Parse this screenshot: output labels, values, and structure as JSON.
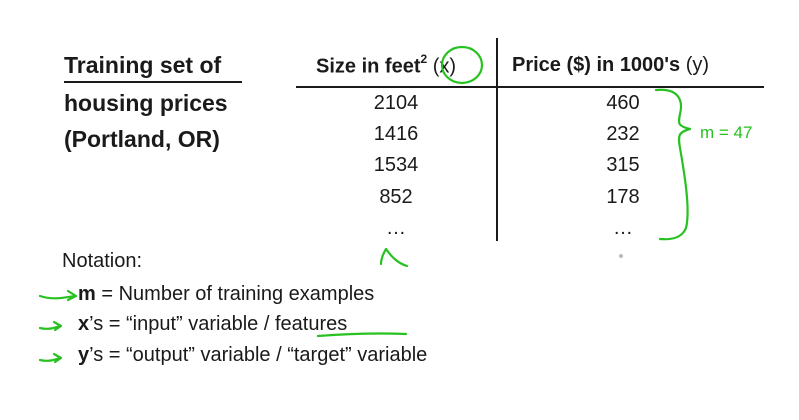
{
  "title": {
    "line1": "Training set of",
    "line2": "housing prices",
    "line3": "(Portland, OR)"
  },
  "table": {
    "x_header": {
      "label": "Size in feet",
      "superscript": "2",
      "var": "(x)"
    },
    "y_header": {
      "label": "Price ($) in 1000's",
      "var": "(y)"
    },
    "rows": [
      {
        "x": "2104",
        "y": "460"
      },
      {
        "x": "1416",
        "y": "232"
      },
      {
        "x": "1534",
        "y": "315"
      },
      {
        "x": "852",
        "y": "178"
      },
      {
        "x": "…",
        "y": "…"
      }
    ]
  },
  "notation": {
    "heading": "Notation:",
    "items": [
      {
        "symbol": "m",
        "text": " = Number of training examples"
      },
      {
        "symbol": "x",
        "suffix": "’s",
        "text": " = “input” variable / features"
      },
      {
        "symbol": "y",
        "suffix": "’s",
        "text": " = “output” variable / “target” variable"
      }
    ]
  },
  "annotations": {
    "m_label": "m = 47",
    "ink_color": "#27c21f"
  }
}
